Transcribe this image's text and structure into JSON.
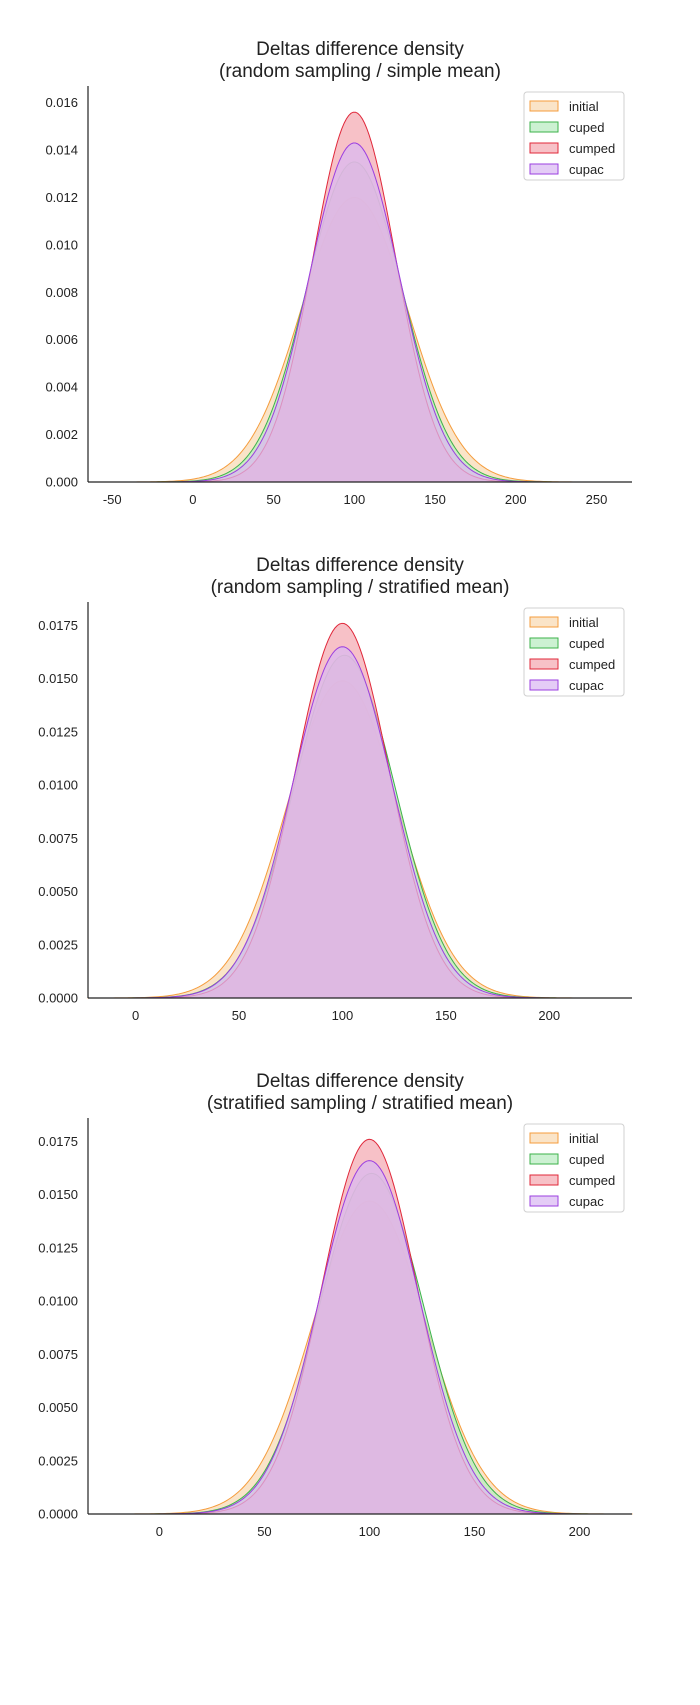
{
  "chart_data": [
    {
      "type": "area",
      "title_line1": "Deltas difference density",
      "title_line2": "(random sampling / simple mean)",
      "xlim": [
        -65,
        272
      ],
      "ylim": [
        0,
        0.0167
      ],
      "xticks": [
        -50,
        0,
        50,
        100,
        150,
        200,
        250
      ],
      "yticks": [
        0.0,
        0.002,
        0.004,
        0.006,
        0.008,
        0.01,
        0.012,
        0.014,
        0.016
      ],
      "ytick_labels": [
        "0.000",
        "0.002",
        "0.004",
        "0.006",
        "0.008",
        "0.010",
        "0.012",
        "0.014",
        "0.016"
      ],
      "grid": false,
      "legend": "top-right",
      "series": [
        {
          "name": "initial",
          "mean": 100,
          "peak": 0.012,
          "sigma": 33,
          "color": "#f59c3c",
          "fill": "#f8d9b3"
        },
        {
          "name": "cuped",
          "mean": 100,
          "peak": 0.0135,
          "sigma": 29.5,
          "color": "#3cb24a",
          "fill": "#b9ebc0"
        },
        {
          "name": "cumped",
          "mean": 100,
          "peak": 0.0156,
          "sigma": 25.6,
          "color": "#e0283a",
          "fill": "#f4a9b1"
        },
        {
          "name": "cupac",
          "mean": 100,
          "peak": 0.0143,
          "sigma": 28,
          "color": "#9b3fe0",
          "fill": "#d9b8f3"
        }
      ]
    },
    {
      "type": "area",
      "title_line1": "Deltas difference density",
      "title_line2": "(random sampling / stratified mean)",
      "xlim": [
        -23,
        240
      ],
      "ylim": [
        0,
        0.0186
      ],
      "xticks": [
        0,
        50,
        100,
        150,
        200
      ],
      "yticks": [
        0.0,
        0.0025,
        0.005,
        0.0075,
        0.01,
        0.0125,
        0.015,
        0.0175
      ],
      "ytick_labels": [
        "0.0000",
        "0.0025",
        "0.0050",
        "0.0075",
        "0.0100",
        "0.0125",
        "0.0150",
        "0.0175"
      ],
      "grid": false,
      "legend": "top-right",
      "series": [
        {
          "name": "initial",
          "mean": 100,
          "peak": 0.0149,
          "sigma": 26.8,
          "color": "#f59c3c",
          "fill": "#f8d9b3"
        },
        {
          "name": "cuped",
          "mean": 101,
          "peak": 0.0161,
          "sigma": 24.8,
          "color": "#3cb24a",
          "fill": "#b9ebc0"
        },
        {
          "name": "cumped",
          "mean": 100,
          "peak": 0.0176,
          "sigma": 22.7,
          "color": "#e0283a",
          "fill": "#f4a9b1"
        },
        {
          "name": "cupac",
          "mean": 100,
          "peak": 0.0165,
          "sigma": 24.2,
          "color": "#9b3fe0",
          "fill": "#d9b8f3"
        }
      ]
    },
    {
      "type": "area",
      "title_line1": "Deltas difference density",
      "title_line2": "(stratified sampling / stratified mean)",
      "xlim": [
        -34,
        225
      ],
      "ylim": [
        0,
        0.0186
      ],
      "xticks": [
        0,
        50,
        100,
        150,
        200
      ],
      "yticks": [
        0.0,
        0.0025,
        0.005,
        0.0075,
        0.01,
        0.0125,
        0.015,
        0.0175
      ],
      "ytick_labels": [
        "0.0000",
        "0.0025",
        "0.0050",
        "0.0075",
        "0.0100",
        "0.0125",
        "0.0150",
        "0.0175"
      ],
      "grid": false,
      "legend": "top-right",
      "series": [
        {
          "name": "initial",
          "mean": 100,
          "peak": 0.0147,
          "sigma": 27.1,
          "color": "#f59c3c",
          "fill": "#f8d9b3"
        },
        {
          "name": "cuped",
          "mean": 101,
          "peak": 0.016,
          "sigma": 25.0,
          "color": "#3cb24a",
          "fill": "#b9ebc0"
        },
        {
          "name": "cumped",
          "mean": 100,
          "peak": 0.0176,
          "sigma": 22.7,
          "color": "#e0283a",
          "fill": "#f4a9b1"
        },
        {
          "name": "cupac",
          "mean": 100,
          "peak": 0.0166,
          "sigma": 24.0,
          "color": "#9b3fe0",
          "fill": "#d9b8f3"
        }
      ]
    }
  ]
}
